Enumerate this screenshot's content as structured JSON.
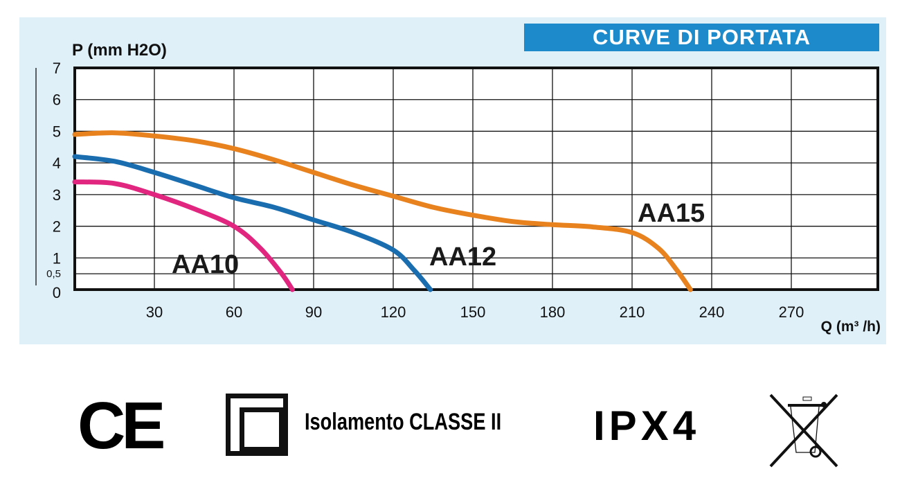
{
  "chart_data": {
    "type": "line",
    "title": "CURVE DI PORTATA",
    "xlabel": "Q (m³ /h)",
    "ylabel": "P (mm H2O)",
    "xlim": [
      0,
      302
    ],
    "ylim": [
      0,
      7
    ],
    "xticks": [
      30,
      60,
      90,
      120,
      150,
      180,
      210,
      240,
      270
    ],
    "yticks": [
      0,
      0.5,
      1,
      2,
      3,
      4,
      5,
      6,
      7
    ],
    "ytick_labels": [
      "0",
      "0,5",
      "1",
      "2",
      "3",
      "4",
      "5",
      "6",
      "7"
    ],
    "grid": true,
    "series": [
      {
        "name": "AA10",
        "color": "#e0267f",
        "x": [
          0,
          15,
          30,
          45,
          60,
          70,
          78,
          82
        ],
        "y": [
          3.4,
          3.35,
          3.0,
          2.55,
          2.0,
          1.3,
          0.5,
          0
        ]
      },
      {
        "name": "AA12",
        "color": "#1a6eb0",
        "x": [
          0,
          15,
          30,
          45,
          60,
          75,
          90,
          105,
          120,
          128,
          134
        ],
        "y": [
          4.2,
          4.05,
          3.7,
          3.3,
          2.9,
          2.6,
          2.2,
          1.8,
          1.25,
          0.6,
          0
        ]
      },
      {
        "name": "AA15",
        "color": "#e8821e",
        "x": [
          0,
          15,
          30,
          45,
          60,
          75,
          90,
          105,
          120,
          135,
          150,
          165,
          180,
          195,
          210,
          220,
          227,
          232
        ],
        "y": [
          4.9,
          4.95,
          4.85,
          4.7,
          4.45,
          4.1,
          3.7,
          3.3,
          2.95,
          2.6,
          2.35,
          2.15,
          2.05,
          1.98,
          1.8,
          1.3,
          0.6,
          0
        ]
      }
    ]
  },
  "footer": {
    "ce_mark": "CE",
    "insulation_label": "Isolamento CLASSE II",
    "ip_rating": "IPX4"
  }
}
